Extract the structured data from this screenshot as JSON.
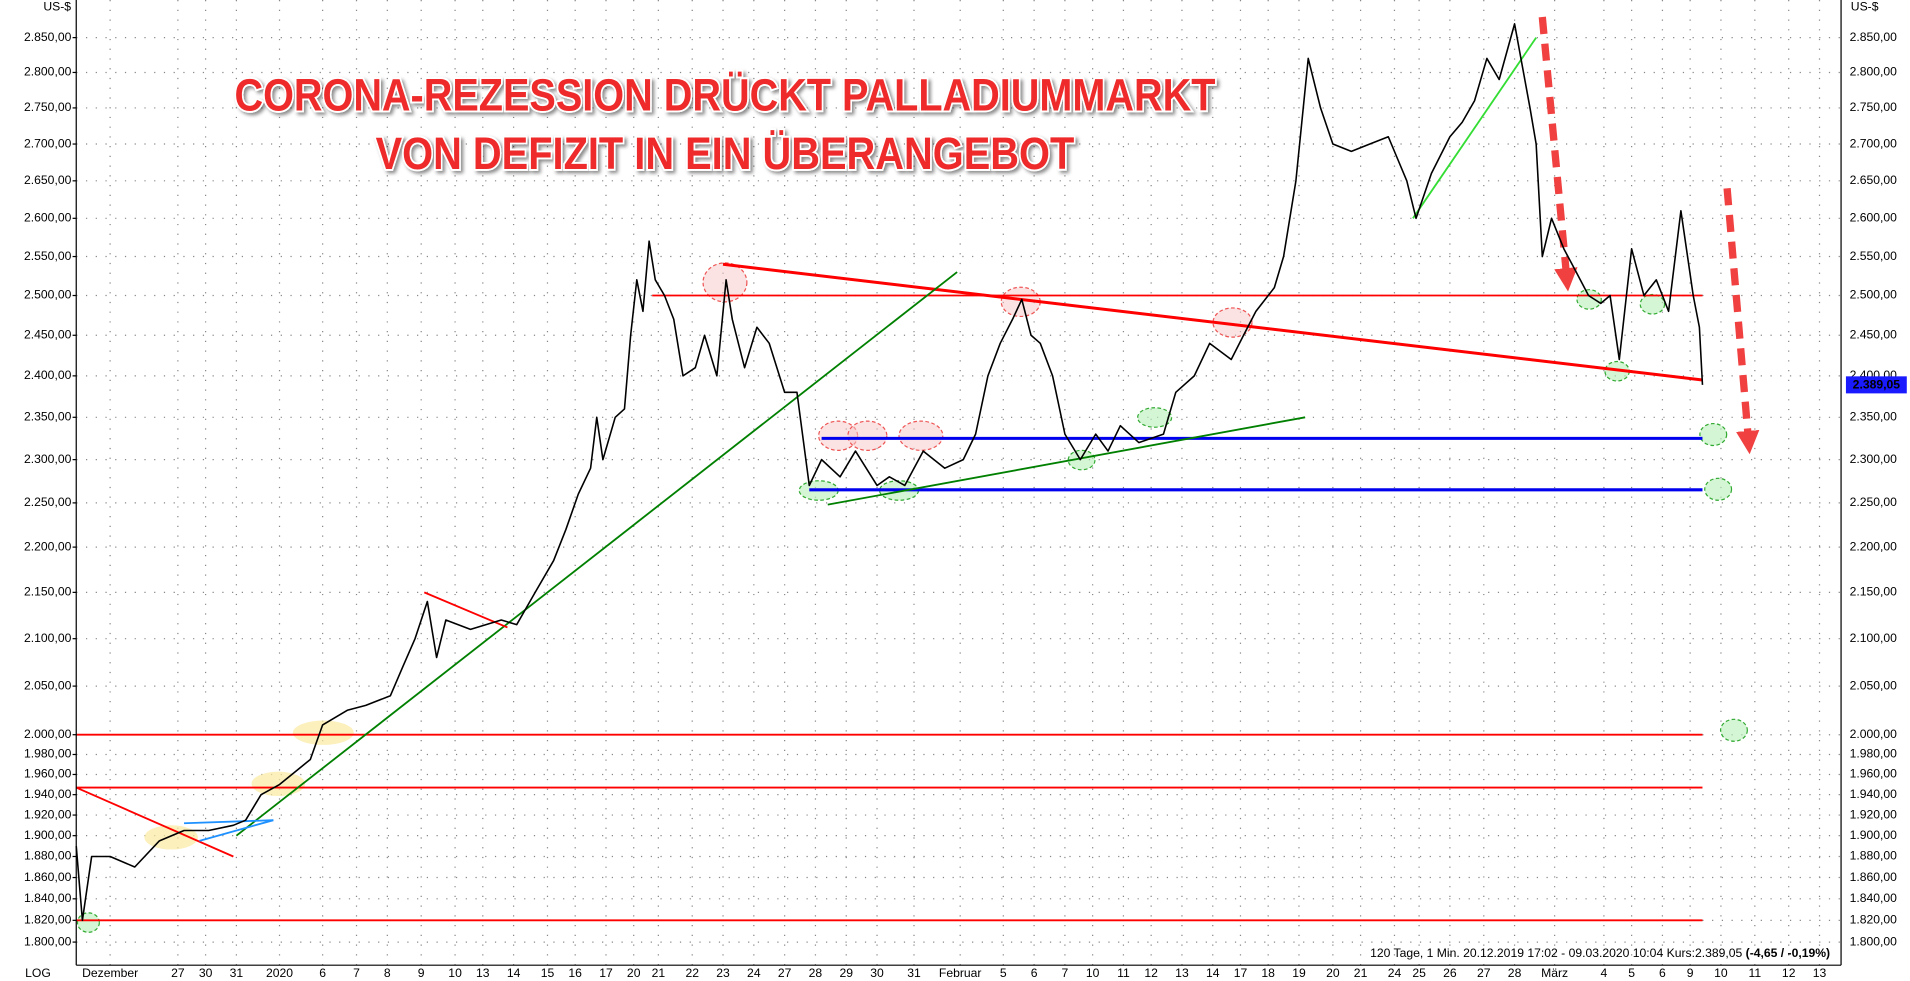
{
  "chart_data": {
    "type": "line",
    "title": "CORONA-REZESSION DRÜCKT PALLADIUMMARKT",
    "subtitle": "VON DEFIZIT IN EIN ÜBERANGEBOT",
    "y_unit": "US-$",
    "scale_label": "LOG",
    "footer": "120 Tage, 1 Min. 20.12.2019 17:02 - 09.03.2020 10:04  Kurs:2.389,05 ",
    "footer_change": "(-4,65 / -0,19%)",
    "log_scale": true,
    "grid": true,
    "color": "#000000",
    "x": [
      0,
      0.2,
      0.5,
      1.1,
      1.9,
      2.7,
      3.5,
      4.3,
      5.1,
      5.5,
      6.0,
      6.6,
      7.2,
      7.6,
      8.0,
      8.8,
      9.4,
      10.2,
      10.6,
      11.0,
      11.4,
      11.7,
      12.0,
      12.8,
      13.8,
      14.3,
      14.9,
      15.5,
      15.9,
      16.3,
      16.7,
      16.9,
      17.1,
      17.5,
      17.8,
      18.0,
      18.2,
      18.4,
      18.6,
      18.8,
      19.1,
      19.4,
      19.7,
      20.1,
      20.4,
      20.8,
      21.1,
      21.3,
      21.7,
      22.1,
      22.5,
      23.0,
      23.4,
      23.8,
      24.2,
      24.8,
      25.3,
      26.0,
      26.4,
      26.9,
      27.5,
      28.2,
      28.8,
      29.2,
      29.6,
      30.0,
      30.4,
      30.7,
      31.0,
      31.3,
      31.7,
      32.1,
      32.6,
      33.1,
      33.5,
      33.9,
      34.5,
      35.3,
      35.7,
      36.3,
      36.8,
      37.5,
      37.9,
      38.3,
      38.9,
      39.2,
      39.6,
      40.0,
      40.4,
      40.8,
      41.4,
      42.0,
      42.6,
      43.2,
      43.5,
      44.0,
      44.6,
      45.0,
      45.4,
      45.8,
      46.2,
      46.7,
      47.2,
      47.4,
      47.6,
      47.9,
      48.3,
      48.7,
      49.1,
      49.5,
      49.8,
      50.1,
      50.5,
      50.9,
      51.3,
      51.7,
      52.1,
      52.5,
      52.7,
      52.8
    ],
    "values": [
      1890,
      1820,
      1880,
      1880,
      1870,
      1895,
      1905,
      1905,
      1910,
      1915,
      1940,
      1950,
      1965,
      1975,
      2010,
      2025,
      2030,
      2040,
      2070,
      2100,
      2140,
      2080,
      2120,
      2110,
      2120,
      2115,
      2150,
      2185,
      2220,
      2260,
      2290,
      2350,
      2300,
      2350,
      2360,
      2450,
      2520,
      2480,
      2570,
      2520,
      2500,
      2470,
      2400,
      2410,
      2450,
      2400,
      2520,
      2470,
      2410,
      2460,
      2440,
      2380,
      2380,
      2270,
      2300,
      2280,
      2310,
      2270,
      2280,
      2270,
      2310,
      2290,
      2300,
      2330,
      2400,
      2440,
      2470,
      2495,
      2450,
      2440,
      2400,
      2330,
      2300,
      2330,
      2310,
      2340,
      2320,
      2330,
      2380,
      2400,
      2440,
      2420,
      2450,
      2480,
      2510,
      2550,
      2650,
      2820,
      2750,
      2700,
      2690,
      2700,
      2710,
      2650,
      2600,
      2660,
      2710,
      2730,
      2760,
      2820,
      2790,
      2870,
      2750,
      2700,
      2550,
      2600,
      2560,
      2530,
      2500,
      2490,
      2500,
      2420,
      2560,
      2500,
      2520,
      2480,
      2610,
      2500,
      2460,
      2389.05
    ],
    "value_labels": [
      null,
      null,
      null,
      null,
      null,
      null,
      null,
      null,
      null,
      null,
      null,
      null,
      null,
      null,
      null,
      null,
      null,
      null,
      null,
      null,
      null,
      null,
      null,
      null,
      null,
      null,
      null,
      null,
      null,
      null,
      null,
      null,
      null,
      null,
      null,
      null,
      null,
      null,
      null,
      null,
      null,
      null,
      null,
      null,
      null,
      null,
      null,
      null,
      null,
      null,
      null,
      null,
      null,
      null,
      null,
      null,
      null,
      null,
      null,
      null,
      null,
      null,
      null,
      null,
      null,
      null,
      null,
      null,
      null,
      null,
      null,
      null,
      null,
      null,
      null,
      null,
      null,
      null,
      null,
      null,
      null,
      null,
      null,
      null,
      null,
      null,
      null,
      null,
      null,
      null,
      null,
      null,
      null,
      null,
      null,
      null,
      null,
      null,
      null,
      null,
      null,
      null,
      null,
      null,
      null,
      null,
      null,
      null,
      null,
      null,
      null,
      null,
      null,
      null,
      null,
      null,
      null,
      null,
      null,
      "2.389,05"
    ],
    "xlim": [
      0,
      57.3
    ],
    "xticks": [
      {
        "value": 1.1,
        "label": "Dezember"
      },
      {
        "value": 3.3,
        "label": "27"
      },
      {
        "value": 4.2,
        "label": "30"
      },
      {
        "value": 5.2,
        "label": "31"
      },
      {
        "value": 6.6,
        "label": "2020"
      },
      {
        "value": 8.0,
        "label": "6"
      },
      {
        "value": 9.1,
        "label": "7"
      },
      {
        "value": 10.1,
        "label": "8"
      },
      {
        "value": 11.2,
        "label": "9"
      },
      {
        "value": 12.3,
        "label": "10"
      },
      {
        "value": 13.2,
        "label": "13"
      },
      {
        "value": 14.2,
        "label": "14"
      },
      {
        "value": 15.3,
        "label": "15"
      },
      {
        "value": 16.2,
        "label": "16"
      },
      {
        "value": 17.2,
        "label": "17"
      },
      {
        "value": 18.1,
        "label": "20"
      },
      {
        "value": 18.9,
        "label": "21"
      },
      {
        "value": 20.0,
        "label": "22"
      },
      {
        "value": 21.0,
        "label": "23"
      },
      {
        "value": 22.0,
        "label": "24"
      },
      {
        "value": 23.0,
        "label": "27"
      },
      {
        "value": 24.0,
        "label": "28"
      },
      {
        "value": 25.0,
        "label": "29"
      },
      {
        "value": 26.0,
        "label": "30"
      },
      {
        "value": 27.2,
        "label": "31"
      },
      {
        "value": 28.7,
        "label": "Februar"
      },
      {
        "value": 30.1,
        "label": "5"
      },
      {
        "value": 31.1,
        "label": "6"
      },
      {
        "value": 32.1,
        "label": "7"
      },
      {
        "value": 33.0,
        "label": "10"
      },
      {
        "value": 34.0,
        "label": "11"
      },
      {
        "value": 34.9,
        "label": "12"
      },
      {
        "value": 35.9,
        "label": "13"
      },
      {
        "value": 36.9,
        "label": "14"
      },
      {
        "value": 37.8,
        "label": "17"
      },
      {
        "value": 38.7,
        "label": "18"
      },
      {
        "value": 39.7,
        "label": "19"
      },
      {
        "value": 40.8,
        "label": "20"
      },
      {
        "value": 41.7,
        "label": "21"
      },
      {
        "value": 42.8,
        "label": "24"
      },
      {
        "value": 43.6,
        "label": "25"
      },
      {
        "value": 44.6,
        "label": "26"
      },
      {
        "value": 45.7,
        "label": "27"
      },
      {
        "value": 46.7,
        "label": "28"
      },
      {
        "value": 48.0,
        "label": "März"
      },
      {
        "value": 49.6,
        "label": "4"
      },
      {
        "value": 50.5,
        "label": "5"
      },
      {
        "value": 51.5,
        "label": "6"
      },
      {
        "value": 52.4,
        "label": "9"
      },
      {
        "value": 53.4,
        "label": "10"
      },
      {
        "value": 54.5,
        "label": "11"
      },
      {
        "value": 55.6,
        "label": "12"
      },
      {
        "value": 56.6,
        "label": "13"
      }
    ],
    "ylim": [
      1779,
      2905
    ],
    "yticks": [
      {
        "value": 1800,
        "label": "1.800,00"
      },
      {
        "value": 1820,
        "label": "1.820,00"
      },
      {
        "value": 1840,
        "label": "1.840,00"
      },
      {
        "value": 1860,
        "label": "1.860,00"
      },
      {
        "value": 1880,
        "label": "1.880,00"
      },
      {
        "value": 1900,
        "label": "1.900,00"
      },
      {
        "value": 1920,
        "label": "1.920,00"
      },
      {
        "value": 1940,
        "label": "1.940,00"
      },
      {
        "value": 1960,
        "label": "1.960,00"
      },
      {
        "value": 1980,
        "label": "1.980,00"
      },
      {
        "value": 2000,
        "label": "2.000,00"
      },
      {
        "value": 2050,
        "label": "2.050,00"
      },
      {
        "value": 2100,
        "label": "2.100,00"
      },
      {
        "value": 2150,
        "label": "2.150,00"
      },
      {
        "value": 2200,
        "label": "2.200,00"
      },
      {
        "value": 2250,
        "label": "2.250,00"
      },
      {
        "value": 2300,
        "label": "2.300,00"
      },
      {
        "value": 2350,
        "label": "2.350,00"
      },
      {
        "value": 2400,
        "label": "2.400,00"
      },
      {
        "value": 2450,
        "label": "2.450,00"
      },
      {
        "value": 2500,
        "label": "2.500,00"
      },
      {
        "value": 2550,
        "label": "2.550,00"
      },
      {
        "value": 2600,
        "label": "2.600,00"
      },
      {
        "value": 2650,
        "label": "2.650,00"
      },
      {
        "value": 2700,
        "label": "2.700,00"
      },
      {
        "value": 2750,
        "label": "2.750,00"
      },
      {
        "value": 2800,
        "label": "2.800,00"
      },
      {
        "value": 2850,
        "label": "2.850,00"
      }
    ],
    "annotations": [
      {
        "x": [
          18.7,
          52.8
        ],
        "y": [
          2500,
          2500
        ],
        "color": "#ff0000",
        "width": 1.5
      },
      {
        "x": [
          0,
          52.8
        ],
        "y": [
          2000,
          2000
        ],
        "color": "#ff0000",
        "width": 1.5
      },
      {
        "x": [
          0,
          52.8
        ],
        "y": [
          1947,
          1947
        ],
        "color": "#ff0000",
        "width": 1.5
      },
      {
        "x": [
          0,
          52.8
        ],
        "y": [
          1820,
          1820
        ],
        "color": "#ff0000",
        "width": 1.5
      },
      {
        "x": [
          24.2,
          52.8
        ],
        "y": [
          2325,
          2325
        ],
        "color": "#0000ee",
        "width": 2.5
      },
      {
        "x": [
          23.8,
          52.8
        ],
        "y": [
          2265,
          2265
        ],
        "color": "#0000ee",
        "width": 2.5
      },
      {
        "x": [
          21.0,
          52.8
        ],
        "y": [
          2540,
          2395
        ],
        "color": "#ff0000",
        "width": 2.5
      },
      {
        "x": [
          5.2,
          28.6
        ],
        "y": [
          1900,
          2530
        ],
        "color": "#008000",
        "width": 1.5
      },
      {
        "x": [
          24.4,
          39.9
        ],
        "y": [
          2248,
          2350
        ],
        "color": "#008000",
        "width": 1.5
      },
      {
        "x": [
          43.4,
          47.4
        ],
        "y": [
          2600,
          2850
        ],
        "color": "#33dd33",
        "width": 1.5
      },
      {
        "x": [
          0,
          5.1
        ],
        "y": [
          1947,
          1880
        ],
        "color": "#ff0000",
        "width": 1.5
      },
      {
        "x": [
          11.3,
          14.0
        ],
        "y": [
          2150,
          2112
        ],
        "color": "#ff0000",
        "width": 1.5
      },
      {
        "x": [
          3.5,
          6.4
        ],
        "y": [
          1912,
          1915
        ],
        "color": "#1e90ff",
        "width": 1.5
      },
      {
        "x": [
          4.0,
          6.4
        ],
        "y": [
          1895,
          1915
        ],
        "color": "#1e90ff",
        "width": 1.5
      },
      {
        "x": [
          47.6,
          48.4
        ],
        "y": [
          2880,
          2520
        ],
        "color": "#f04040",
        "width": 6,
        "dashed": true,
        "arrow": true
      },
      {
        "x": [
          53.6,
          54.3
        ],
        "y": [
          2640,
          2320
        ],
        "color": "#f04040",
        "width": 6,
        "dashed": true,
        "arrow": true
      }
    ]
  }
}
